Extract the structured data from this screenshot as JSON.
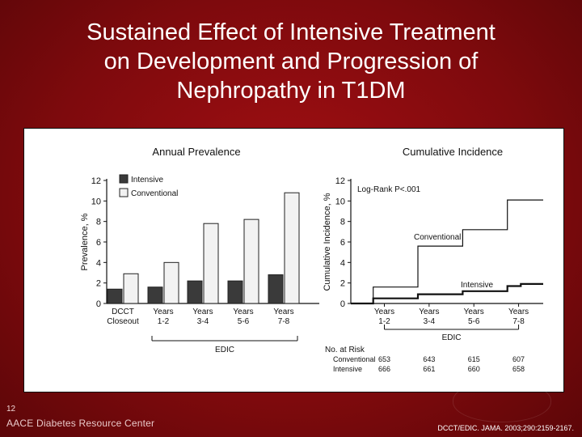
{
  "title_lines": [
    "Sustained Effect of Intensive Treatment",
    "on Development and Progression of",
    "Nephropathy in T1DM"
  ],
  "slide_number": "12",
  "footer_left": "AACE Diabetes Resource Center",
  "footer_right": "DCCT/EDIC. JAMA. 2003;290:2159-2167.",
  "chart_data": [
    {
      "type": "bar",
      "title": "Annual Prevalence",
      "ylabel": "Prevalence, %",
      "ylim": [
        0,
        12
      ],
      "yticks": [
        0,
        2,
        4,
        6,
        8,
        10,
        12
      ],
      "categories": [
        {
          "line1": "DCCT",
          "line2": "Closeout"
        },
        {
          "line1": "Years",
          "line2": "1-2"
        },
        {
          "line1": "Years",
          "line2": "3-4"
        },
        {
          "line1": "Years",
          "line2": "5-6"
        },
        {
          "line1": "Years",
          "line2": "7-8"
        }
      ],
      "series": [
        {
          "name": "Intensive",
          "values": [
            1.4,
            1.6,
            2.2,
            2.2,
            2.8
          ],
          "color": "#3a3a3a"
        },
        {
          "name": "Conventional",
          "values": [
            2.9,
            4.0,
            7.8,
            8.2,
            10.8
          ],
          "color": "#f2f2f2"
        }
      ],
      "group_label": "EDIC"
    },
    {
      "type": "line",
      "title": "Cumulative Incidence",
      "ylabel": "Cumulative Incidence, %",
      "ylim": [
        0,
        12
      ],
      "yticks": [
        0,
        2,
        4,
        6,
        8,
        10,
        12
      ],
      "xlim": [
        0,
        8.6
      ],
      "annotation": "Log-Rank P<.001",
      "xticks": [
        {
          "x": 1.5,
          "line1": "Years",
          "line2": "1-2"
        },
        {
          "x": 3.5,
          "line1": "Years",
          "line2": "3-4"
        },
        {
          "x": 5.5,
          "line1": "Years",
          "line2": "5-6"
        },
        {
          "x": 7.5,
          "line1": "Years",
          "line2": "7-8"
        }
      ],
      "x_group_label": "EDIC",
      "series": [
        {
          "name": "Conventional",
          "steps": [
            [
              0,
              0
            ],
            [
              1,
              0
            ],
            [
              1,
              1.6
            ],
            [
              3,
              1.6
            ],
            [
              3,
              5.6
            ],
            [
              5,
              5.6
            ],
            [
              5,
              7.2
            ],
            [
              7,
              7.2
            ],
            [
              7,
              10.1
            ],
            [
              8.6,
              10.1
            ]
          ]
        },
        {
          "name": "Intensive",
          "steps": [
            [
              0,
              0
            ],
            [
              1,
              0
            ],
            [
              1,
              0.5
            ],
            [
              3,
              0.5
            ],
            [
              3,
              0.9
            ],
            [
              5,
              0.9
            ],
            [
              5,
              1.2
            ],
            [
              7,
              1.2
            ],
            [
              7,
              1.7
            ],
            [
              7.6,
              1.7
            ],
            [
              7.6,
              1.9
            ],
            [
              8.6,
              1.9
            ]
          ]
        }
      ],
      "at_risk": {
        "header": "No. at Risk",
        "rows": [
          {
            "label": "Conventional",
            "values": [
              "653",
              "643",
              "615",
              "607"
            ]
          },
          {
            "label": "Intensive",
            "values": [
              "666",
              "661",
              "660",
              "658"
            ]
          }
        ]
      }
    }
  ]
}
